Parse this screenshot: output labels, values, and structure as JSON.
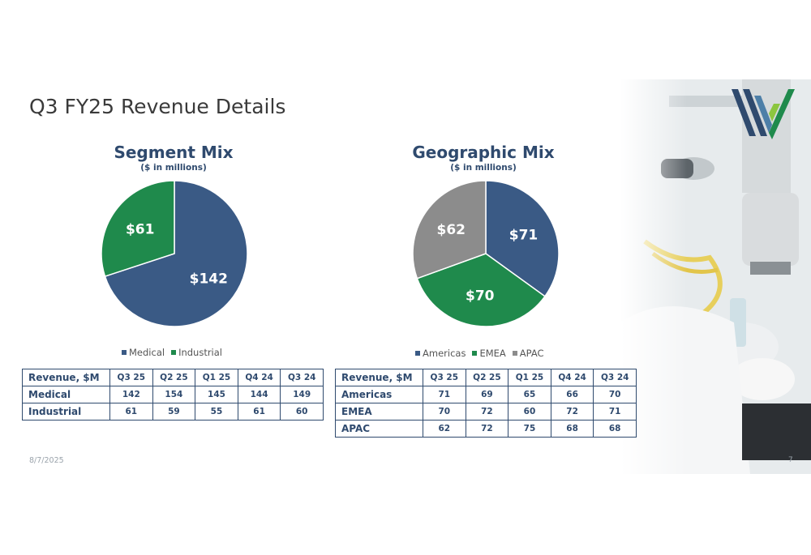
{
  "slide": {
    "title": "Q3 FY25 Revenue Details",
    "date": "8/7/2025",
    "page_number": "7"
  },
  "colors": {
    "navy": "#3a5a85",
    "green": "#1f8a4c",
    "gray": "#8c8c8c",
    "text_navy": "#2f4a6e"
  },
  "chart_data": [
    {
      "type": "pie",
      "title": "Segment Mix",
      "subtitle": "($ in millions)",
      "slices": [
        {
          "name": "Medical",
          "value": 142,
          "label": "$142",
          "color": "#3a5a85"
        },
        {
          "name": "Industrial",
          "value": 61,
          "label": "$61",
          "color": "#1f8a4c"
        }
      ],
      "legend": "bottom"
    },
    {
      "type": "pie",
      "title": "Geographic Mix",
      "subtitle": "($ in millions)",
      "slices": [
        {
          "name": "Americas",
          "value": 71,
          "label": "$71",
          "color": "#3a5a85"
        },
        {
          "name": "EMEA",
          "value": 70,
          "label": "$70",
          "color": "#1f8a4c"
        },
        {
          "name": "APAC",
          "value": 62,
          "label": "$62",
          "color": "#8c8c8c"
        }
      ],
      "legend": "bottom"
    }
  ],
  "segment_table": {
    "columns": [
      "Revenue, $M",
      "Q3 25",
      "Q2 25",
      "Q1 25",
      "Q4 24",
      "Q3 24"
    ],
    "rows": [
      {
        "label": "Medical",
        "values": [
          "142",
          "154",
          "145",
          "144",
          "149"
        ]
      },
      {
        "label": "Industrial",
        "values": [
          "61",
          "59",
          "55",
          "61",
          "60"
        ]
      }
    ]
  },
  "geo_table": {
    "columns": [
      "Revenue, $M",
      "Q3 25",
      "Q2 25",
      "Q1 25",
      "Q4 24",
      "Q3 24"
    ],
    "rows": [
      {
        "label": "Americas",
        "values": [
          "71",
          "69",
          "65",
          "66",
          "70"
        ]
      },
      {
        "label": "EMEA",
        "values": [
          "70",
          "72",
          "60",
          "72",
          "71"
        ]
      },
      {
        "label": "APAC",
        "values": [
          "62",
          "72",
          "75",
          "68",
          "68"
        ]
      }
    ]
  }
}
